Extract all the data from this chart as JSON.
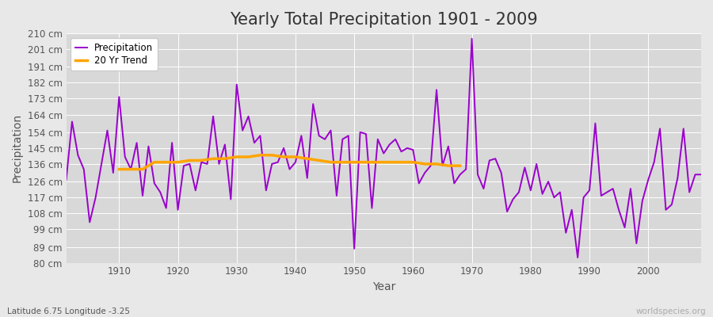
{
  "title": "Yearly Total Precipitation 1901 - 2009",
  "xlabel": "Year",
  "ylabel": "Precipitation",
  "lat_lon_label": "Latitude 6.75 Longitude -3.25",
  "watermark": "worldspecies.org",
  "ylim": [
    80,
    210
  ],
  "yticks": [
    80,
    89,
    99,
    108,
    117,
    126,
    136,
    145,
    154,
    164,
    173,
    182,
    191,
    201,
    210
  ],
  "ytick_labels": [
    "80 cm",
    "89 cm",
    "99 cm",
    "108 cm",
    "117 cm",
    "126 cm",
    "136 cm",
    "145 cm",
    "154 cm",
    "164 cm",
    "173 cm",
    "182 cm",
    "191 cm",
    "201 cm",
    "210 cm"
  ],
  "xlim": [
    1901,
    2009
  ],
  "xticks": [
    1910,
    1920,
    1930,
    1940,
    1950,
    1960,
    1970,
    1980,
    1990,
    2000
  ],
  "years": [
    1901,
    1902,
    1903,
    1904,
    1905,
    1906,
    1907,
    1908,
    1909,
    1910,
    1911,
    1912,
    1913,
    1914,
    1915,
    1916,
    1917,
    1918,
    1919,
    1920,
    1921,
    1922,
    1923,
    1924,
    1925,
    1926,
    1927,
    1928,
    1929,
    1930,
    1931,
    1932,
    1933,
    1934,
    1935,
    1936,
    1937,
    1938,
    1939,
    1940,
    1941,
    1942,
    1943,
    1944,
    1945,
    1946,
    1947,
    1948,
    1949,
    1950,
    1951,
    1952,
    1953,
    1954,
    1955,
    1956,
    1957,
    1958,
    1959,
    1960,
    1961,
    1962,
    1963,
    1964,
    1965,
    1966,
    1967,
    1968,
    1969,
    1970,
    1971,
    1972,
    1973,
    1974,
    1975,
    1976,
    1977,
    1978,
    1979,
    1980,
    1981,
    1982,
    1983,
    1984,
    1985,
    1986,
    1987,
    1988,
    1989,
    1990,
    1991,
    1992,
    1993,
    1994,
    1995,
    1996,
    1997,
    1998,
    1999,
    2000,
    2001,
    2002,
    2003,
    2004,
    2005,
    2006,
    2007,
    2008,
    2009
  ],
  "precipitation": [
    127,
    160,
    141,
    133,
    103,
    117,
    136,
    155,
    131,
    174,
    140,
    133,
    148,
    118,
    146,
    125,
    120,
    111,
    148,
    110,
    135,
    136,
    121,
    137,
    136,
    163,
    136,
    147,
    116,
    181,
    155,
    163,
    148,
    152,
    121,
    136,
    137,
    145,
    133,
    137,
    152,
    128,
    170,
    152,
    150,
    155,
    118,
    150,
    152,
    88,
    154,
    153,
    111,
    150,
    142,
    147,
    150,
    143,
    145,
    144,
    125,
    131,
    135,
    178,
    135,
    146,
    125,
    130,
    133,
    207,
    130,
    122,
    138,
    139,
    131,
    109,
    116,
    120,
    134,
    121,
    136,
    119,
    126,
    117,
    120,
    97,
    110,
    83,
    117,
    121,
    159,
    118,
    120,
    122,
    110,
    100,
    122,
    91,
    115,
    127,
    137,
    156,
    110,
    113,
    128,
    156,
    120,
    130,
    130
  ],
  "trend_years": [
    1910,
    1912,
    1914,
    1916,
    1918,
    1920,
    1922,
    1924,
    1926,
    1928,
    1930,
    1932,
    1934,
    1936,
    1938,
    1940,
    1942,
    1944,
    1946,
    1948,
    1958,
    1960,
    1962,
    1964,
    1966,
    1968
  ],
  "trend_values": [
    133,
    133,
    133,
    137,
    137,
    137,
    138,
    138,
    139,
    139,
    140,
    140,
    141,
    141,
    140,
    140,
    139,
    138,
    137,
    137,
    137,
    137,
    136,
    136,
    135,
    135
  ],
  "precip_color": "#9900cc",
  "trend_color": "#ffa500",
  "fig_bg_color": "#e8e8e8",
  "plot_bg_color": "#d8d8d8",
  "grid_color": "#ffffff",
  "title_color": "#333333",
  "label_color": "#555555",
  "watermark_color": "#aaaaaa",
  "title_fontsize": 15,
  "axis_label_fontsize": 10,
  "tick_fontsize": 8.5,
  "legend_fontsize": 8.5,
  "precip_linewidth": 1.4,
  "trend_linewidth": 2.5
}
